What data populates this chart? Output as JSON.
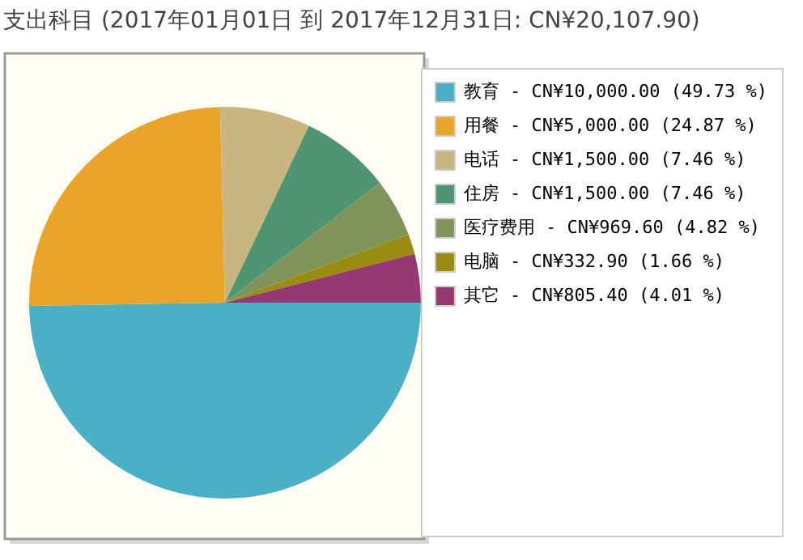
{
  "chart_data": {
    "type": "pie",
    "title": "支出科目 (2017年01月01日 到 2017年12月31日: CN¥20,107.90)",
    "categories": [
      "教育",
      "用餐",
      "电话",
      "住房",
      "医疗费用",
      "电脑",
      "其它"
    ],
    "values": [
      10000,
      5000,
      1500,
      1500,
      969.6,
      332.9,
      805.4
    ],
    "value_labels": [
      "CN¥10,000.00 (49.73 %)",
      "CN¥5,000.00 (24.87 %)",
      "CN¥1,500.00 (7.46 %)",
      "CN¥1,500.00 (7.46 %)",
      "CN¥969.60 (4.82 %)",
      "CN¥332.90 (1.66 %)",
      "CN¥805.40 (4.01 %)"
    ],
    "colors": [
      "#4ab0c6",
      "#eba42a",
      "#c8b580",
      "#4f9572",
      "#80945a",
      "#998c10",
      "#963872"
    ],
    "legend": "right"
  }
}
